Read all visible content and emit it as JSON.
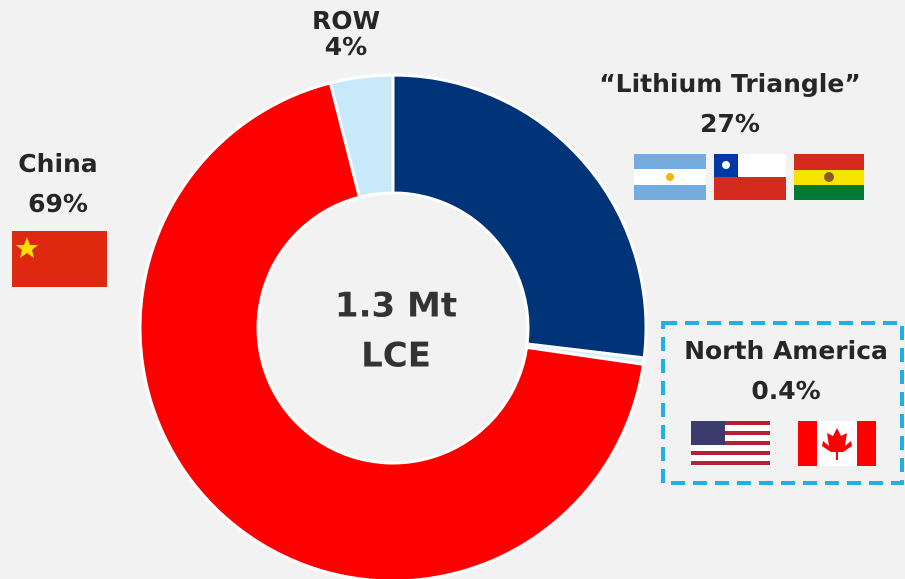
{
  "chart_data": {
    "type": "donut",
    "categories": [
      "“Lithium Triangle”",
      "North America",
      "China",
      "ROW"
    ],
    "values": [
      27,
      0.4,
      69,
      4
    ],
    "value_labels": [
      "27%",
      "0.4%",
      "69%",
      "4%"
    ],
    "colors": [
      "#003478",
      "#d6eef9",
      "#ff0000",
      "#c8e9fa"
    ],
    "center_label": [
      "1.3 Mt",
      "LCE"
    ]
  }
}
